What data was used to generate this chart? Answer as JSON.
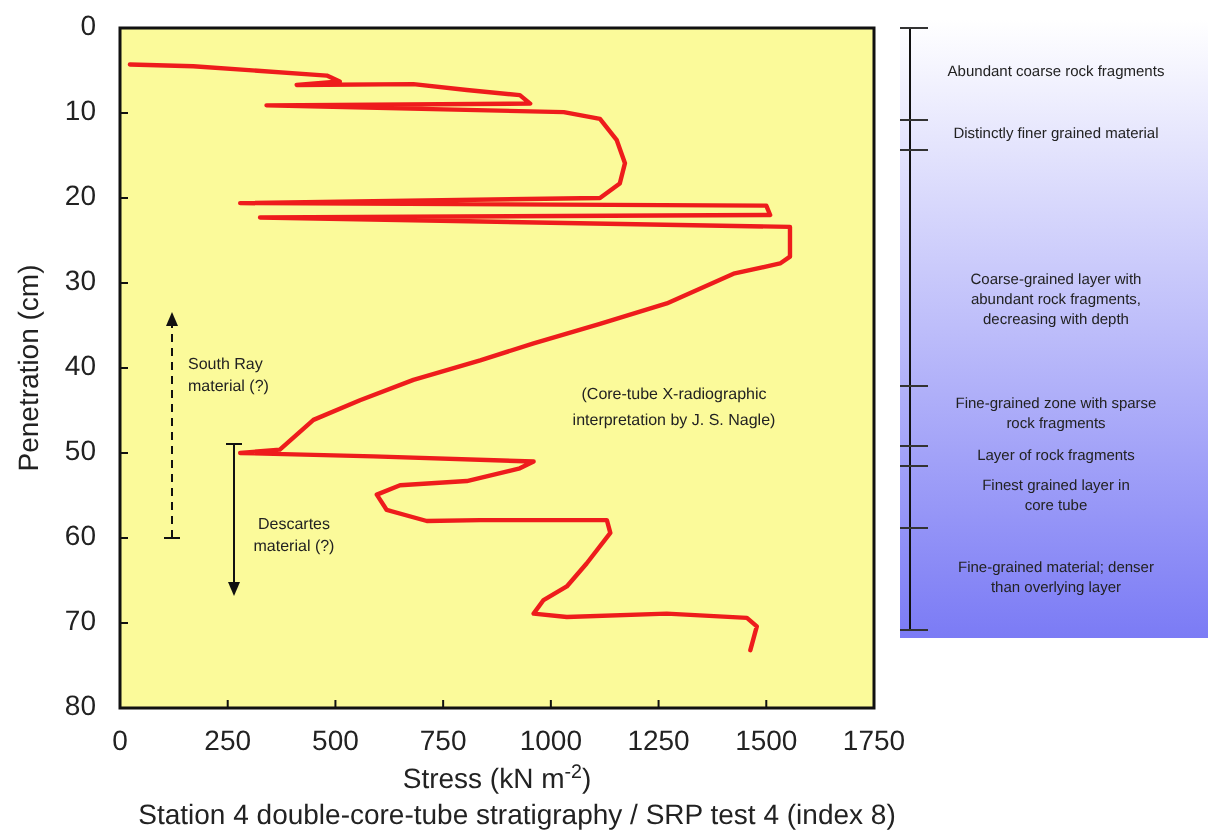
{
  "chart_data": {
    "type": "line",
    "title": "Station 4 double-core-tube stratigraphy / SRP test 4 (index 8)",
    "xlabel": "Stress (kN m$^{-2}$)",
    "ylabel": "Penetration (cm)",
    "xlim": [
      0,
      1750
    ],
    "xticks": [
      0,
      250,
      500,
      750,
      1000,
      1250,
      1500,
      1750
    ],
    "ylim": [
      80,
      0
    ],
    "yticks": [
      0,
      10,
      20,
      30,
      40,
      50,
      60,
      70,
      80
    ],
    "marker": "none",
    "line_style": "solid",
    "series": [
      {
        "color": "#ee1c1c",
        "x": [
          23,
          170,
          480,
          510,
          410,
          681,
          805,
          928,
          952,
          340,
          1030,
          1114,
          1153,
          1172,
          1160,
          1114,
          279,
          1500,
          1509,
          325,
          1555,
          1555,
          1532,
          1424,
          1269,
          1114,
          960,
          836,
          681,
          557,
          449,
          371,
          279,
          588,
          960,
          928,
          805,
          650,
          596,
          619,
          712,
          836,
          1130,
          1138,
          1083,
          1037,
          983,
          960,
          1037,
          1269,
          1455,
          1478,
          1463
        ],
        "values": [
          4.3,
          4.5,
          5.6,
          6.3,
          6.7,
          6.6,
          7.3,
          7.9,
          8.9,
          9.1,
          9.9,
          10.7,
          13.2,
          15.9,
          18.3,
          20.0,
          20.6,
          20.9,
          22.0,
          22.3,
          23.4,
          26.9,
          27.7,
          28.9,
          32.4,
          34.8,
          37.1,
          39.1,
          41.4,
          43.8,
          46.1,
          49.6,
          50.0,
          50.4,
          51.0,
          51.8,
          53.3,
          53.8,
          54.9,
          56.7,
          58.0,
          57.9,
          57.9,
          59.4,
          63.0,
          65.7,
          67.3,
          68.9,
          69.3,
          68.9,
          69.4,
          70.4,
          73.2
        ]
      }
    ],
    "annotations": [
      "South Ray\nmaterial (?)",
      "Descartes\nmaterial (?)",
      "(Core-tube X-radiographic\ninterpretation by  J. S. Nagle)",
      "Abundant coarse rock fragments",
      "Distinctly finer grained material",
      "Coarse-grained layer  with\nabundant rock fragments,\ndecreasing with depth",
      "Fine-grained zone with sparse\nrock fragments",
      "Layer of rock fragments",
      "Finest grained layer in\ncore tube",
      "Fine-grained material;  denser\nthan overlying layer"
    ]
  }
}
